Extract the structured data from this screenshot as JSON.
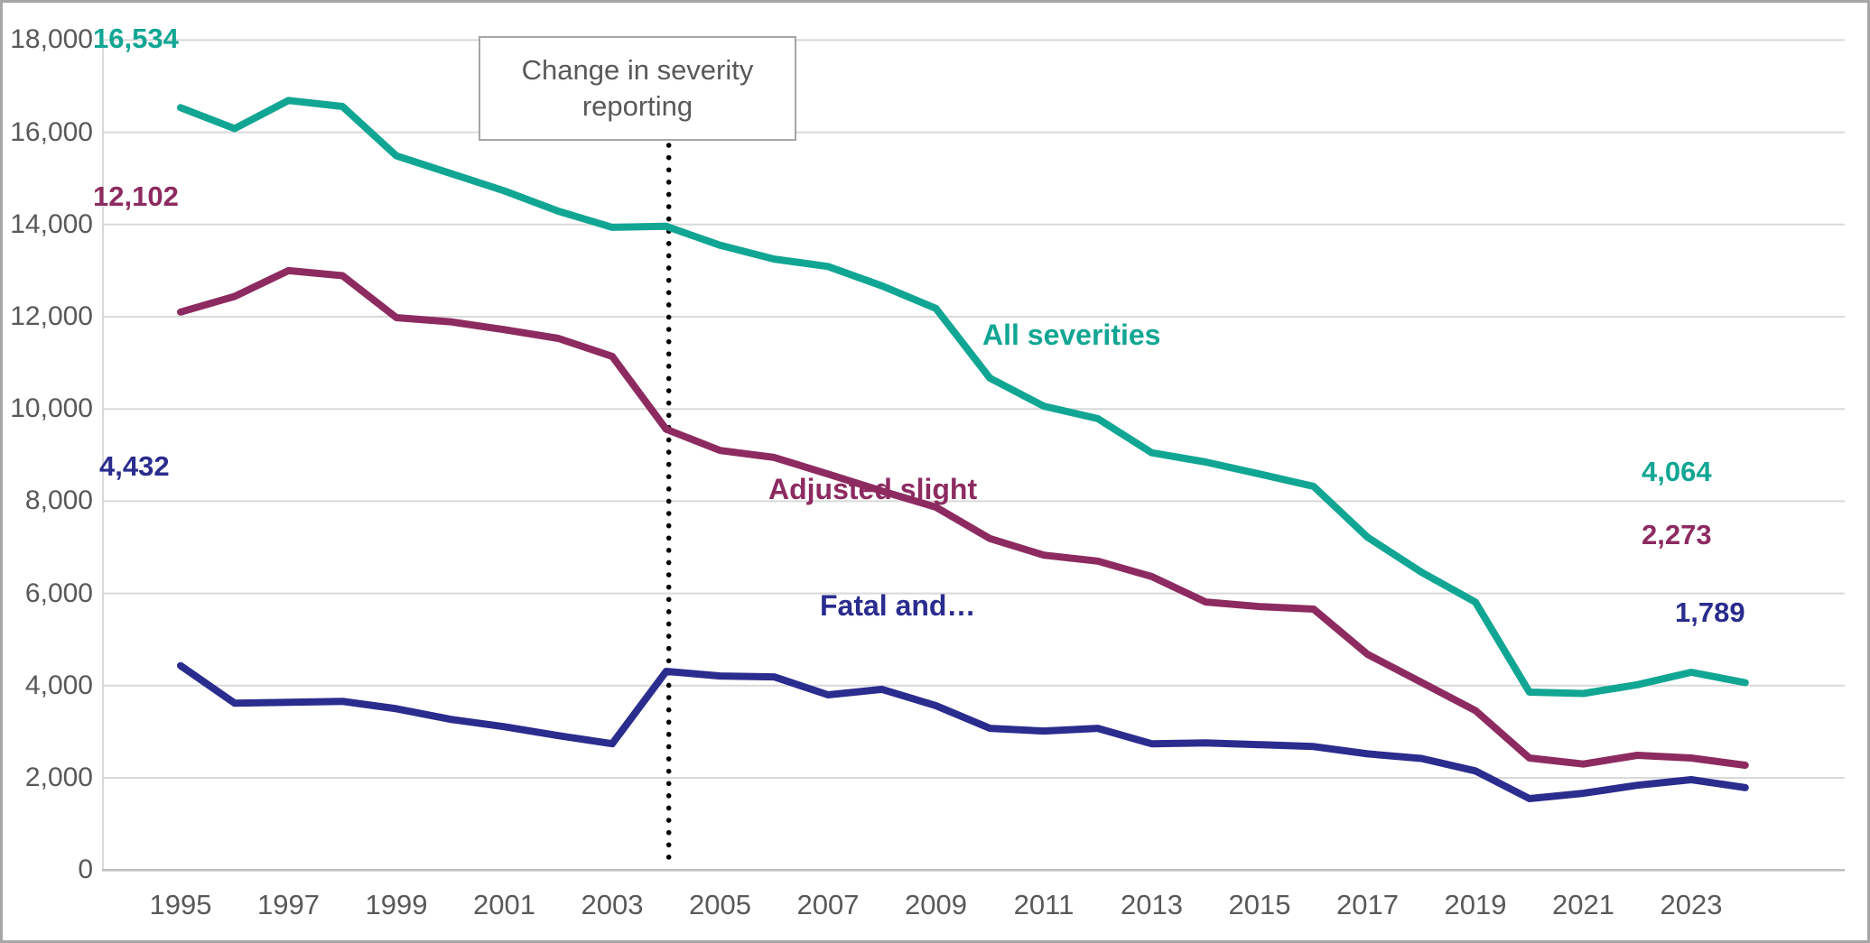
{
  "frame": {
    "border_color": "#a6a6a6",
    "background": "#ffffff",
    "gridline_color": "#d9d9d9",
    "axis_line_color": "#bfbfbf",
    "tick_text_color": "#595959",
    "dotted_line_color": "#000000"
  },
  "annotation": {
    "text": "Change in severity reporting"
  },
  "chart_data": {
    "type": "line",
    "title": "",
    "xlabel": "",
    "ylabel": "",
    "grid": true,
    "ylim": [
      0,
      18000
    ],
    "x": [
      1995,
      1996,
      1997,
      1998,
      1999,
      2000,
      2001,
      2002,
      2003,
      2004,
      2005,
      2006,
      2007,
      2008,
      2009,
      2010,
      2011,
      2012,
      2013,
      2014,
      2015,
      2016,
      2017,
      2018,
      2019,
      2020,
      2021,
      2022,
      2023,
      2024
    ],
    "x_tick_years": [
      1995,
      1997,
      1999,
      2001,
      2003,
      2005,
      2007,
      2009,
      2011,
      2013,
      2015,
      2017,
      2019,
      2021,
      2023
    ],
    "x_tick_labels": [
      "1995",
      "1997",
      "1999",
      "2001",
      "2003",
      "2005",
      "2007",
      "2009",
      "2011",
      "2013",
      "2015",
      "2017",
      "2019",
      "2021",
      "2023"
    ],
    "y_tick_values": [
      0,
      2000,
      4000,
      6000,
      8000,
      10000,
      12000,
      14000,
      16000,
      18000
    ],
    "y_tick_labels": [
      "0",
      "2,000",
      "4,000",
      "6,000",
      "8,000",
      "10,000",
      "12,000",
      "14,000",
      "16,000",
      "18,000"
    ],
    "vline": {
      "year": 2004.05,
      "style": "dotted",
      "label": "Change in severity reporting"
    },
    "series": [
      {
        "name": "All severities",
        "color": "#11a694",
        "start_label": "16,534",
        "end_label": "4,064",
        "values": [
          16534,
          16080,
          16690,
          16560,
          15490,
          15110,
          14730,
          14290,
          13940,
          13960,
          13550,
          13250,
          13090,
          12670,
          12180,
          10670,
          10060,
          9790,
          9050,
          8850,
          8590,
          8320,
          7220,
          6460,
          5810,
          3860,
          3830,
          4020,
          4290,
          4064
        ]
      },
      {
        "name": "Adjusted slight",
        "color": "#8d2b61",
        "start_label": "12,102",
        "end_label": "2,273",
        "values": [
          12102,
          12440,
          13000,
          12890,
          11980,
          11890,
          11720,
          11530,
          11140,
          9560,
          9100,
          8950,
          8590,
          8220,
          7870,
          7190,
          6830,
          6700,
          6365,
          5815,
          5715,
          5660,
          4680,
          4070,
          3460,
          2430,
          2300,
          2490,
          2430,
          2273
        ]
      },
      {
        "name": "Fatal and…",
        "color": "#2a2c8e",
        "start_label": "4,432",
        "end_label": "1,789",
        "values": [
          4432,
          3620,
          3640,
          3660,
          3500,
          3270,
          3110,
          2915,
          2740,
          4310,
          4210,
          4190,
          3800,
          3920,
          3565,
          3075,
          3015,
          3075,
          2740,
          2760,
          2720,
          2680,
          2520,
          2420,
          2150,
          1550,
          1665,
          1840,
          1960,
          1789
        ]
      }
    ]
  }
}
